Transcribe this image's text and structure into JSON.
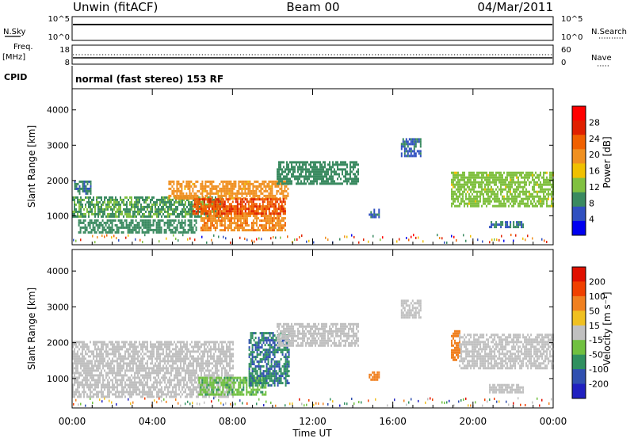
{
  "header": {
    "station": "Unwin (fitACF)",
    "beam": "Beam 00",
    "date": "04/Mar/2011"
  },
  "top_panels": {
    "nsky_label": "N.Sky",
    "nsky_ticks": [
      "10^5",
      "10^0"
    ],
    "nsearch_label": "N.Search",
    "nsearch_ticks": [
      "10^5",
      "10^0"
    ],
    "freq_label_1": "Freq.",
    "freq_label_2": "[MHz]",
    "freq_ticks": [
      "18",
      "8"
    ],
    "nave_label": "Nave",
    "nave_ticks": [
      "60",
      "0"
    ],
    "cpid_label": "CPID",
    "cpid_text": "normal (fast stereo) 153 RF"
  },
  "colorbars": {
    "power": {
      "label": "Power [dB]",
      "ticks": [
        "28",
        "24",
        "20",
        "16",
        "12",
        "8",
        "4"
      ],
      "colors": [
        "#0000f0",
        "#3050c0",
        "#3a8a60",
        "#80c040",
        "#f0c000",
        "#f09020",
        "#f06000",
        "#e02000",
        "#ff0000"
      ]
    },
    "velocity": {
      "label": "Velocity [m s⁻¹]",
      "ticks": [
        "200",
        "100",
        "50",
        "15",
        "-15",
        "-50",
        "-100",
        "-200"
      ],
      "colors": [
        "#2020c0",
        "#3050b0",
        "#309060",
        "#70c040",
        "#c0c0c0",
        "#f0c020",
        "#f08020",
        "#f04000",
        "#e01000"
      ]
    }
  },
  "axes": {
    "ylabel": "Slant Range [km]",
    "yticks": [
      "4000",
      "3000",
      "2000",
      "1000"
    ],
    "xlabel": "Time UT",
    "xticks": [
      "00:00",
      "04:00",
      "08:00",
      "12:00",
      "16:00",
      "20:00",
      "00:00"
    ]
  },
  "chart_data": [
    {
      "type": "heatmap",
      "title": "",
      "xlabel": "",
      "ylabel": "Slant Range [km]",
      "colorbar_label": "Power [dB]",
      "xlim_hours": [
        0,
        24
      ],
      "ylim_km": [
        180,
        4600
      ],
      "zlim": [
        0,
        30
      ],
      "grid": false,
      "regions": [
        {
          "t_start": 0.1,
          "t_end": 0.9,
          "r_low": 1600,
          "r_high": 2000,
          "value": 6
        },
        {
          "t_start": 0.0,
          "t_end": 7.5,
          "r_low": 1000,
          "r_high": 1550,
          "value": 9
        },
        {
          "t_start": 0.3,
          "t_end": 6.2,
          "r_low": 550,
          "r_high": 900,
          "value": 8
        },
        {
          "t_start": 4.8,
          "t_end": 10.8,
          "r_low": 1500,
          "r_high": 2000,
          "value": 18
        },
        {
          "t_start": 6.4,
          "t_end": 10.6,
          "r_low": 600,
          "r_high": 1300,
          "value": 20
        },
        {
          "t_start": 6.0,
          "t_end": 10.6,
          "r_low": 1050,
          "r_high": 1500,
          "value": 24
        },
        {
          "t_start": 10.2,
          "t_end": 14.3,
          "r_low": 1900,
          "r_high": 2550,
          "value": 7
        },
        {
          "t_start": 14.8,
          "t_end": 15.3,
          "r_low": 950,
          "r_high": 1200,
          "value": 6
        },
        {
          "t_start": 16.4,
          "t_end": 17.4,
          "r_low": 2700,
          "r_high": 3200,
          "value": 5
        },
        {
          "t_start": 18.9,
          "t_end": 24.0,
          "r_low": 1300,
          "r_high": 2250,
          "value": 12
        },
        {
          "t_start": 20.8,
          "t_end": 22.5,
          "r_low": 650,
          "r_high": 850,
          "value": 6
        }
      ]
    },
    {
      "type": "heatmap",
      "title": "",
      "xlabel": "Time UT",
      "ylabel": "Slant Range [km]",
      "colorbar_label": "Velocity [m s⁻¹]",
      "xlim_hours": [
        0,
        24
      ],
      "ylim_km": [
        180,
        4600
      ],
      "zlim": [
        -250,
        250
      ],
      "grid": false,
      "regions": [
        {
          "t_start": 0.0,
          "t_end": 8.0,
          "r_low": 500,
          "r_high": 2050,
          "value": 0
        },
        {
          "t_start": 6.3,
          "t_end": 9.7,
          "r_low": 550,
          "r_high": 1050,
          "value": -80
        },
        {
          "t_start": 8.8,
          "t_end": 10.8,
          "r_low": 800,
          "r_high": 2300,
          "value": -150
        },
        {
          "t_start": 10.2,
          "t_end": 14.3,
          "r_low": 1900,
          "r_high": 2550,
          "value": 0
        },
        {
          "t_start": 14.8,
          "t_end": 15.3,
          "r_low": 950,
          "r_high": 1200,
          "value": 120
        },
        {
          "t_start": 16.4,
          "t_end": 17.4,
          "r_low": 2700,
          "r_high": 3200,
          "value": 0
        },
        {
          "t_start": 18.9,
          "t_end": 19.3,
          "r_low": 1500,
          "r_high": 2350,
          "value": 120
        },
        {
          "t_start": 19.3,
          "t_end": 24.0,
          "r_low": 1300,
          "r_high": 2250,
          "value": 0
        },
        {
          "t_start": 20.8,
          "t_end": 22.5,
          "r_low": 650,
          "r_high": 850,
          "value": 0
        }
      ]
    }
  ]
}
